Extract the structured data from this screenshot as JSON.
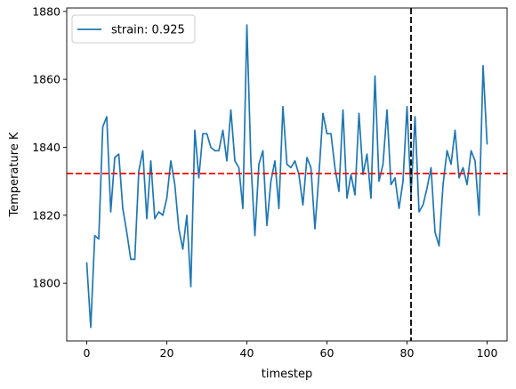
{
  "chart_data": {
    "type": "line",
    "xlabel": "timestep",
    "ylabel": "Temperature K",
    "xlim": [
      -5,
      105
    ],
    "ylim": [
      1783,
      1881
    ],
    "x_ticks": [
      0,
      20,
      40,
      60,
      80,
      100
    ],
    "y_ticks": [
      1800,
      1820,
      1840,
      1860,
      1880
    ],
    "grid": false,
    "legend_position": "top-left",
    "series": [
      {
        "name": "strain: 0.925",
        "color": "#1f77b4",
        "x": [
          0,
          1,
          2,
          3,
          4,
          5,
          6,
          7,
          8,
          9,
          10,
          11,
          12,
          13,
          14,
          15,
          16,
          17,
          18,
          19,
          20,
          21,
          22,
          23,
          24,
          25,
          26,
          27,
          28,
          29,
          30,
          31,
          32,
          33,
          34,
          35,
          36,
          37,
          38,
          39,
          40,
          41,
          42,
          43,
          44,
          45,
          46,
          47,
          48,
          49,
          50,
          51,
          52,
          53,
          54,
          55,
          56,
          57,
          58,
          59,
          60,
          61,
          62,
          63,
          64,
          65,
          66,
          67,
          68,
          69,
          70,
          71,
          72,
          73,
          74,
          75,
          76,
          77,
          78,
          79,
          80,
          81,
          82,
          83,
          84,
          85,
          86,
          87,
          88,
          89,
          90,
          91,
          92,
          93,
          94,
          95,
          96,
          97,
          98,
          99,
          100
        ],
        "values": [
          1806,
          1787,
          1814,
          1813,
          1846,
          1849,
          1821,
          1837,
          1838,
          1822,
          1815,
          1807,
          1807,
          1833,
          1839,
          1819,
          1836,
          1819,
          1821,
          1820,
          1825,
          1836,
          1829,
          1816,
          1810,
          1820,
          1799,
          1845,
          1831,
          1844,
          1844,
          1840,
          1839,
          1839,
          1845,
          1836,
          1851,
          1836,
          1834,
          1822,
          1876,
          1836,
          1814,
          1835,
          1839,
          1817,
          1830,
          1836,
          1822,
          1852,
          1835,
          1834,
          1836,
          1832,
          1823,
          1837,
          1834,
          1816,
          1832,
          1850,
          1844,
          1844,
          1834,
          1827,
          1851,
          1825,
          1832,
          1826,
          1850,
          1832,
          1838,
          1825,
          1861,
          1830,
          1835,
          1851,
          1829,
          1831,
          1822,
          1830,
          1852,
          1826,
          1849,
          1821,
          1823,
          1828,
          1834,
          1815,
          1811,
          1829,
          1839,
          1835,
          1845,
          1831,
          1834,
          1829,
          1839,
          1836,
          1820,
          1864,
          1841
        ]
      }
    ],
    "annotations": [
      {
        "type": "hline",
        "y": 1832.3,
        "color": "#ff0000",
        "style": "dashed"
      },
      {
        "type": "vline",
        "x": 81,
        "color": "#000000",
        "style": "dashed"
      }
    ]
  }
}
